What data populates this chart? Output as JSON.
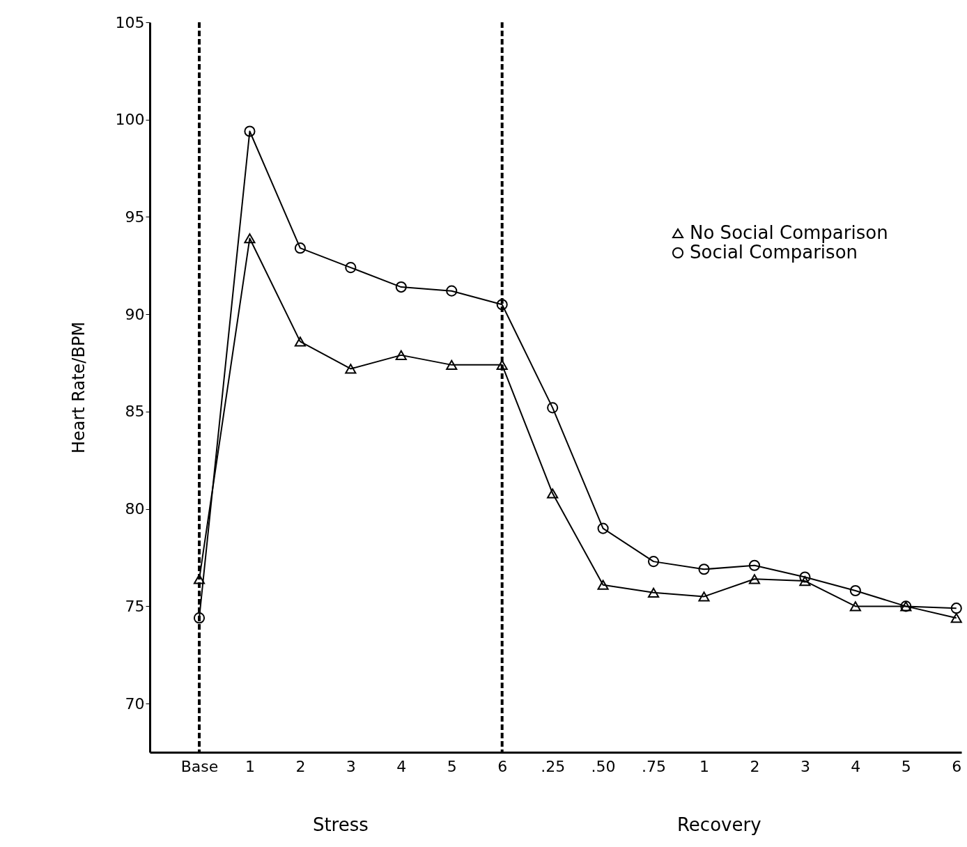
{
  "chart_data": {
    "type": "line",
    "ylabel": "Heart Rate/BPM",
    "categories": [
      "Base",
      "1",
      "2",
      "3",
      "4",
      "5",
      "6",
      ".25",
      ".50",
      ".75",
      "1",
      "2",
      "3",
      "4",
      "5",
      "6"
    ],
    "series": [
      {
        "name": "No Social Comparison",
        "color": "#000000",
        "marker": "triangle",
        "values": [
          76.4,
          93.9,
          88.6,
          87.2,
          87.9,
          87.4,
          87.4,
          80.8,
          76.1,
          75.7,
          75.5,
          76.4,
          76.3,
          75.0,
          75.0,
          74.4
        ]
      },
      {
        "name": "Social Comparison",
        "color": "#000000",
        "marker": "circle",
        "values": [
          74.4,
          99.4,
          93.4,
          92.4,
          91.4,
          91.2,
          90.5,
          85.2,
          79.0,
          77.3,
          76.9,
          77.1,
          76.5,
          75.8,
          75.0,
          74.9
        ]
      }
    ],
    "ylim": [
      67.5,
      105
    ],
    "yticks": [
      70,
      75,
      80,
      85,
      90,
      95,
      100,
      105
    ],
    "ref_lines": [
      {
        "axis": "x",
        "value": "Base",
        "line_style": "dashed"
      },
      {
        "axis": "x",
        "value": "6",
        "line_style": "dashed"
      }
    ],
    "annotations": [
      "Stress",
      "Recovery"
    ],
    "grid": false,
    "legend": "top right",
    "line_style": "solid"
  }
}
